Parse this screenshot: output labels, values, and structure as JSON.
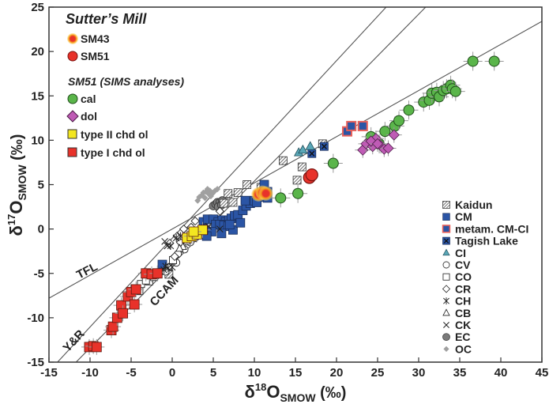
{
  "chart_data": {
    "type": "scatter",
    "title": "",
    "xlabel": {
      "base": "δ",
      "sup": "18",
      "main": "O",
      "sub": "SMOW",
      "unit": " (‰)"
    },
    "ylabel": {
      "base": "δ",
      "sup": "17",
      "main": "O",
      "sub": "SMOW",
      "unit": " (‰)"
    },
    "xlim": [
      -15,
      45
    ],
    "ylim": [
      -15,
      25
    ],
    "xticks": [
      -15,
      -10,
      -5,
      0,
      5,
      10,
      15,
      20,
      25,
      30,
      35,
      40,
      45
    ],
    "yticks": [
      -15,
      -10,
      -5,
      0,
      5,
      10,
      15,
      20,
      25
    ],
    "grid": false,
    "reference_lines": [
      {
        "name": "TFL",
        "label": "TFL",
        "slope": 0.52,
        "intercept": 0
      },
      {
        "name": "Y&R",
        "label": "Y&R",
        "slope": 1.0,
        "intercept": -1.04
      },
      {
        "name": "CCAM",
        "label": "CCAM",
        "slope": 0.94,
        "intercept": -4.0
      }
    ],
    "legend_left": {
      "placement": "top-left",
      "heading1": "Sutter’s Mill",
      "heading2": "SM51 (SIMS analyses)",
      "items1": [
        {
          "key": "SM43",
          "label": "SM43"
        },
        {
          "key": "SM51",
          "label": "SM51"
        }
      ],
      "items2": [
        {
          "key": "cal",
          "label": "cal"
        },
        {
          "key": "dol",
          "label": "dol"
        },
        {
          "key": "typeII",
          "label": "type II chd ol"
        },
        {
          "key": "typeI",
          "label": "type I chd ol"
        }
      ]
    },
    "legend_right": {
      "placement": "bottom-right",
      "items": [
        {
          "key": "Kaidun",
          "label": "Kaidun"
        },
        {
          "key": "CM",
          "label": "CM"
        },
        {
          "key": "metamCMCI",
          "label": "metam. CM-CI"
        },
        {
          "key": "Tagish",
          "label": "Tagish Lake"
        },
        {
          "key": "CI",
          "label": "CI"
        },
        {
          "key": "CV",
          "label": "CV"
        },
        {
          "key": "CO",
          "label": "CO"
        },
        {
          "key": "CR",
          "label": "CR"
        },
        {
          "key": "CH",
          "label": "CH"
        },
        {
          "key": "CB",
          "label": "CB"
        },
        {
          "key": "CK",
          "label": "CK"
        },
        {
          "key": "EC",
          "label": "EC"
        },
        {
          "key": "OC",
          "label": "OC"
        }
      ]
    },
    "series": [
      {
        "name": "OC",
        "key": "OC",
        "marker": "diamond-small",
        "color": "#a0a0a0",
        "points": [
          [
            3.3,
            3.6
          ],
          [
            3.6,
            3.8
          ],
          [
            3.8,
            4.1
          ],
          [
            4.1,
            4.2
          ],
          [
            4.3,
            4.5
          ],
          [
            4.6,
            4.3
          ],
          [
            4.0,
            3.5
          ],
          [
            4.5,
            3.9
          ],
          [
            4.9,
            4.0
          ],
          [
            5.2,
            4.3
          ],
          [
            5.5,
            4.5
          ],
          [
            3.1,
            3.2
          ],
          [
            4.7,
            3.7
          ]
        ]
      },
      {
        "name": "EC",
        "key": "EC",
        "marker": "circle",
        "color": "#7a7a7a",
        "points": [
          [
            5.0,
            2.6
          ],
          [
            5.3,
            2.8
          ],
          [
            5.5,
            3.0
          ],
          [
            5.8,
            3.0
          ],
          [
            6.1,
            3.2
          ],
          [
            5.6,
            2.5
          ],
          [
            6.0,
            2.7
          ]
        ]
      },
      {
        "name": "Kaidun",
        "key": "Kaidun",
        "marker": "square-hatch",
        "color": "#555555",
        "points": [
          [
            6.3,
            2.9
          ],
          [
            6.8,
            4.0
          ],
          [
            7.4,
            3.0
          ],
          [
            8.0,
            4.1
          ],
          [
            9.1,
            5.0
          ],
          [
            10.8,
            4.7
          ],
          [
            13.5,
            7.7
          ],
          [
            15.8,
            7.0
          ],
          [
            15.2,
            5.5
          ],
          [
            18.3,
            9.6
          ],
          [
            -0.4,
            -5.1
          ]
        ]
      },
      {
        "name": "CM",
        "key": "CM",
        "marker": "square",
        "color": "#2b55a5",
        "points": [
          [
            -1.2,
            -4.0
          ],
          [
            3.8,
            0.8
          ],
          [
            4.3,
            1.1
          ],
          [
            5.0,
            1.1
          ],
          [
            5.6,
            0.8
          ],
          [
            6.1,
            1.0
          ],
          [
            6.5,
            0.8
          ],
          [
            6.9,
            1.0
          ],
          [
            7.2,
            1.2
          ],
          [
            7.6,
            1.5
          ],
          [
            5.3,
            0.5
          ],
          [
            5.8,
            0.5
          ],
          [
            6.3,
            0.4
          ],
          [
            6.8,
            0.3
          ],
          [
            7.4,
            -0.1
          ],
          [
            8.0,
            1.6
          ],
          [
            8.6,
            2.1
          ],
          [
            9.0,
            2.6
          ],
          [
            9.5,
            2.9
          ],
          [
            10.0,
            3.2
          ],
          [
            10.5,
            3.8
          ],
          [
            11.0,
            3.6
          ],
          [
            11.6,
            3.5
          ],
          [
            11.2,
            5.0
          ],
          [
            11.6,
            4.2
          ],
          [
            4.8,
            -0.3
          ],
          [
            6.0,
            -0.5
          ],
          [
            8.3,
            0.7
          ],
          [
            10.3,
            3.0
          ],
          [
            4.2,
            -0.8
          ],
          [
            3.8,
            -0.1
          ],
          [
            7.0,
            0.5
          ],
          [
            8.9,
            3.2
          ]
        ]
      },
      {
        "name": "metam. CM-CI",
        "key": "metamCMCI",
        "marker": "square-outline-red",
        "color": "#2b55a5",
        "points": [
          [
            21.3,
            11.0
          ],
          [
            21.8,
            11.6
          ],
          [
            23.2,
            11.6
          ]
        ]
      },
      {
        "name": "Tagish Lake",
        "key": "Tagish",
        "marker": "square-x",
        "color": "#2b55a5",
        "points": [
          [
            17.0,
            8.5
          ],
          [
            18.5,
            9.3
          ]
        ]
      },
      {
        "name": "CI",
        "key": "CI",
        "marker": "triangle",
        "color": "#5aa7b7",
        "points": [
          [
            15.4,
            8.6
          ],
          [
            15.9,
            8.9
          ],
          [
            16.8,
            9.3
          ]
        ]
      },
      {
        "name": "CV",
        "key": "CV",
        "marker": "circle-open",
        "color": "#222222",
        "points": [
          [
            -0.4,
            -4.3
          ],
          [
            0.2,
            -3.3
          ],
          [
            0.7,
            -2.8
          ],
          [
            1.2,
            -1.8
          ],
          [
            1.5,
            -2.3
          ],
          [
            2.2,
            -1.5
          ],
          [
            2.8,
            -0.9
          ],
          [
            3.3,
            -0.4
          ],
          [
            3.8,
            0.1
          ],
          [
            0.5,
            -3.8
          ],
          [
            1.8,
            -1.0
          ],
          [
            -0.8,
            -4.8
          ]
        ]
      },
      {
        "name": "CO",
        "key": "CO",
        "marker": "square-open",
        "color": "#222222",
        "points": [
          [
            -4.6,
            -6.7
          ],
          [
            -4.0,
            -7.0
          ],
          [
            -3.8,
            -6.2
          ],
          [
            -2.8,
            -5.9
          ],
          [
            -2.2,
            -5.4
          ],
          [
            -3.2,
            -5.8
          ],
          [
            0.1,
            -3.5
          ]
        ]
      },
      {
        "name": "CR",
        "key": "CR",
        "marker": "diamond-open",
        "color": "#222222",
        "points": [
          [
            1.0,
            -1.5
          ],
          [
            1.4,
            0.0
          ],
          [
            2.3,
            0.2
          ],
          [
            2.8,
            0.9
          ],
          [
            0.6,
            -0.8
          ],
          [
            -0.3,
            -1.6
          ],
          [
            5.8,
            2.0
          ],
          [
            0.3,
            -3.1
          ],
          [
            2.9,
            -1.0
          ]
        ]
      },
      {
        "name": "CH",
        "key": "CH",
        "marker": "asterisk",
        "color": "#222222",
        "points": [
          [
            -1.5,
            -4.8
          ],
          [
            -1.0,
            -4.6
          ],
          [
            -0.5,
            -4.4
          ],
          [
            0.0,
            -4.3
          ],
          [
            -0.8,
            -4.2
          ],
          [
            0.5,
            -1.0
          ],
          [
            1.0,
            -0.8
          ],
          [
            -1.9,
            -5.2
          ],
          [
            -0.2,
            -1.9
          ]
        ]
      },
      {
        "name": "CB",
        "key": "CB",
        "marker": "triangle-open",
        "color": "#222222",
        "points": [
          [
            1.3,
            -2.0
          ],
          [
            0.9,
            -2.2
          ],
          [
            1.8,
            -1.4
          ]
        ]
      },
      {
        "name": "CK",
        "key": "CK",
        "marker": "x",
        "color": "#222222",
        "points": [
          [
            -0.6,
            -1.9
          ],
          [
            3.8,
            0.1
          ],
          [
            5.8,
            0.0
          ],
          [
            4.4,
            0.3
          ],
          [
            -0.9,
            -1.4
          ]
        ]
      },
      {
        "name": "type I chd ol",
        "key": "typeI",
        "marker": "square-err",
        "color": "#e8322a",
        "points": [
          [
            -10.1,
            -13.3
          ],
          [
            -9.6,
            -13.2
          ],
          [
            -9.2,
            -13.3
          ],
          [
            -7.4,
            -11.4
          ],
          [
            -7.2,
            -11.0
          ],
          [
            -6.7,
            -10.0
          ],
          [
            -6.2,
            -8.6
          ],
          [
            -6.0,
            -9.5
          ],
          [
            -5.4,
            -7.6
          ],
          [
            -5.0,
            -7.1
          ],
          [
            -4.4,
            -6.8
          ],
          [
            -3.2,
            -5.0
          ],
          [
            -2.5,
            -5.1
          ],
          [
            -1.8,
            -5.0
          ],
          [
            -4.6,
            -8.5
          ]
        ]
      },
      {
        "name": "type II chd ol",
        "key": "typeII",
        "marker": "square-err",
        "color": "#f3e620",
        "points": [
          [
            1.8,
            -1.0
          ],
          [
            2.4,
            -0.8
          ],
          [
            3.0,
            -0.6
          ],
          [
            3.7,
            -0.1
          ],
          [
            2.6,
            -0.3
          ]
        ]
      },
      {
        "name": "cal",
        "key": "cal",
        "marker": "circle-err",
        "color": "#5ab54a",
        "points": [
          [
            13.2,
            3.5
          ],
          [
            15.3,
            4.0
          ],
          [
            19.6,
            7.4
          ],
          [
            24.2,
            10.4
          ],
          [
            25.2,
            9.6
          ],
          [
            25.9,
            11.0
          ],
          [
            27.1,
            11.6
          ],
          [
            27.6,
            12.2
          ],
          [
            28.8,
            13.4
          ],
          [
            30.6,
            14.3
          ],
          [
            31.3,
            14.5
          ],
          [
            31.6,
            15.3
          ],
          [
            32.2,
            15.4
          ],
          [
            32.5,
            14.9
          ],
          [
            33.0,
            15.6
          ],
          [
            33.4,
            15.8
          ],
          [
            33.9,
            16.2
          ],
          [
            34.1,
            15.8
          ],
          [
            34.5,
            15.5
          ],
          [
            36.6,
            18.9
          ],
          [
            39.2,
            18.9
          ]
        ]
      },
      {
        "name": "dol",
        "key": "dol",
        "marker": "diamond-err",
        "color": "#bf5bb5",
        "points": [
          [
            23.2,
            8.9
          ],
          [
            23.6,
            9.6
          ],
          [
            24.4,
            9.3
          ],
          [
            24.8,
            10.2
          ],
          [
            25.4,
            9.4
          ],
          [
            25.8,
            9.0
          ],
          [
            26.3,
            9.1
          ],
          [
            24.2,
            9.9
          ],
          [
            27.0,
            10.6
          ],
          [
            25.0,
            9.6
          ]
        ]
      },
      {
        "name": "SM43",
        "key": "SM43",
        "marker": "circle-glow",
        "color": "#e8322a",
        "points": [
          [
            10.5,
            3.9
          ],
          [
            11.0,
            4.1
          ],
          [
            11.4,
            4.0
          ]
        ]
      },
      {
        "name": "SM51",
        "key": "SM51",
        "marker": "circle-big",
        "color": "#e8322a",
        "points": [
          [
            16.7,
            5.8
          ],
          [
            17.0,
            6.1
          ]
        ]
      }
    ]
  }
}
